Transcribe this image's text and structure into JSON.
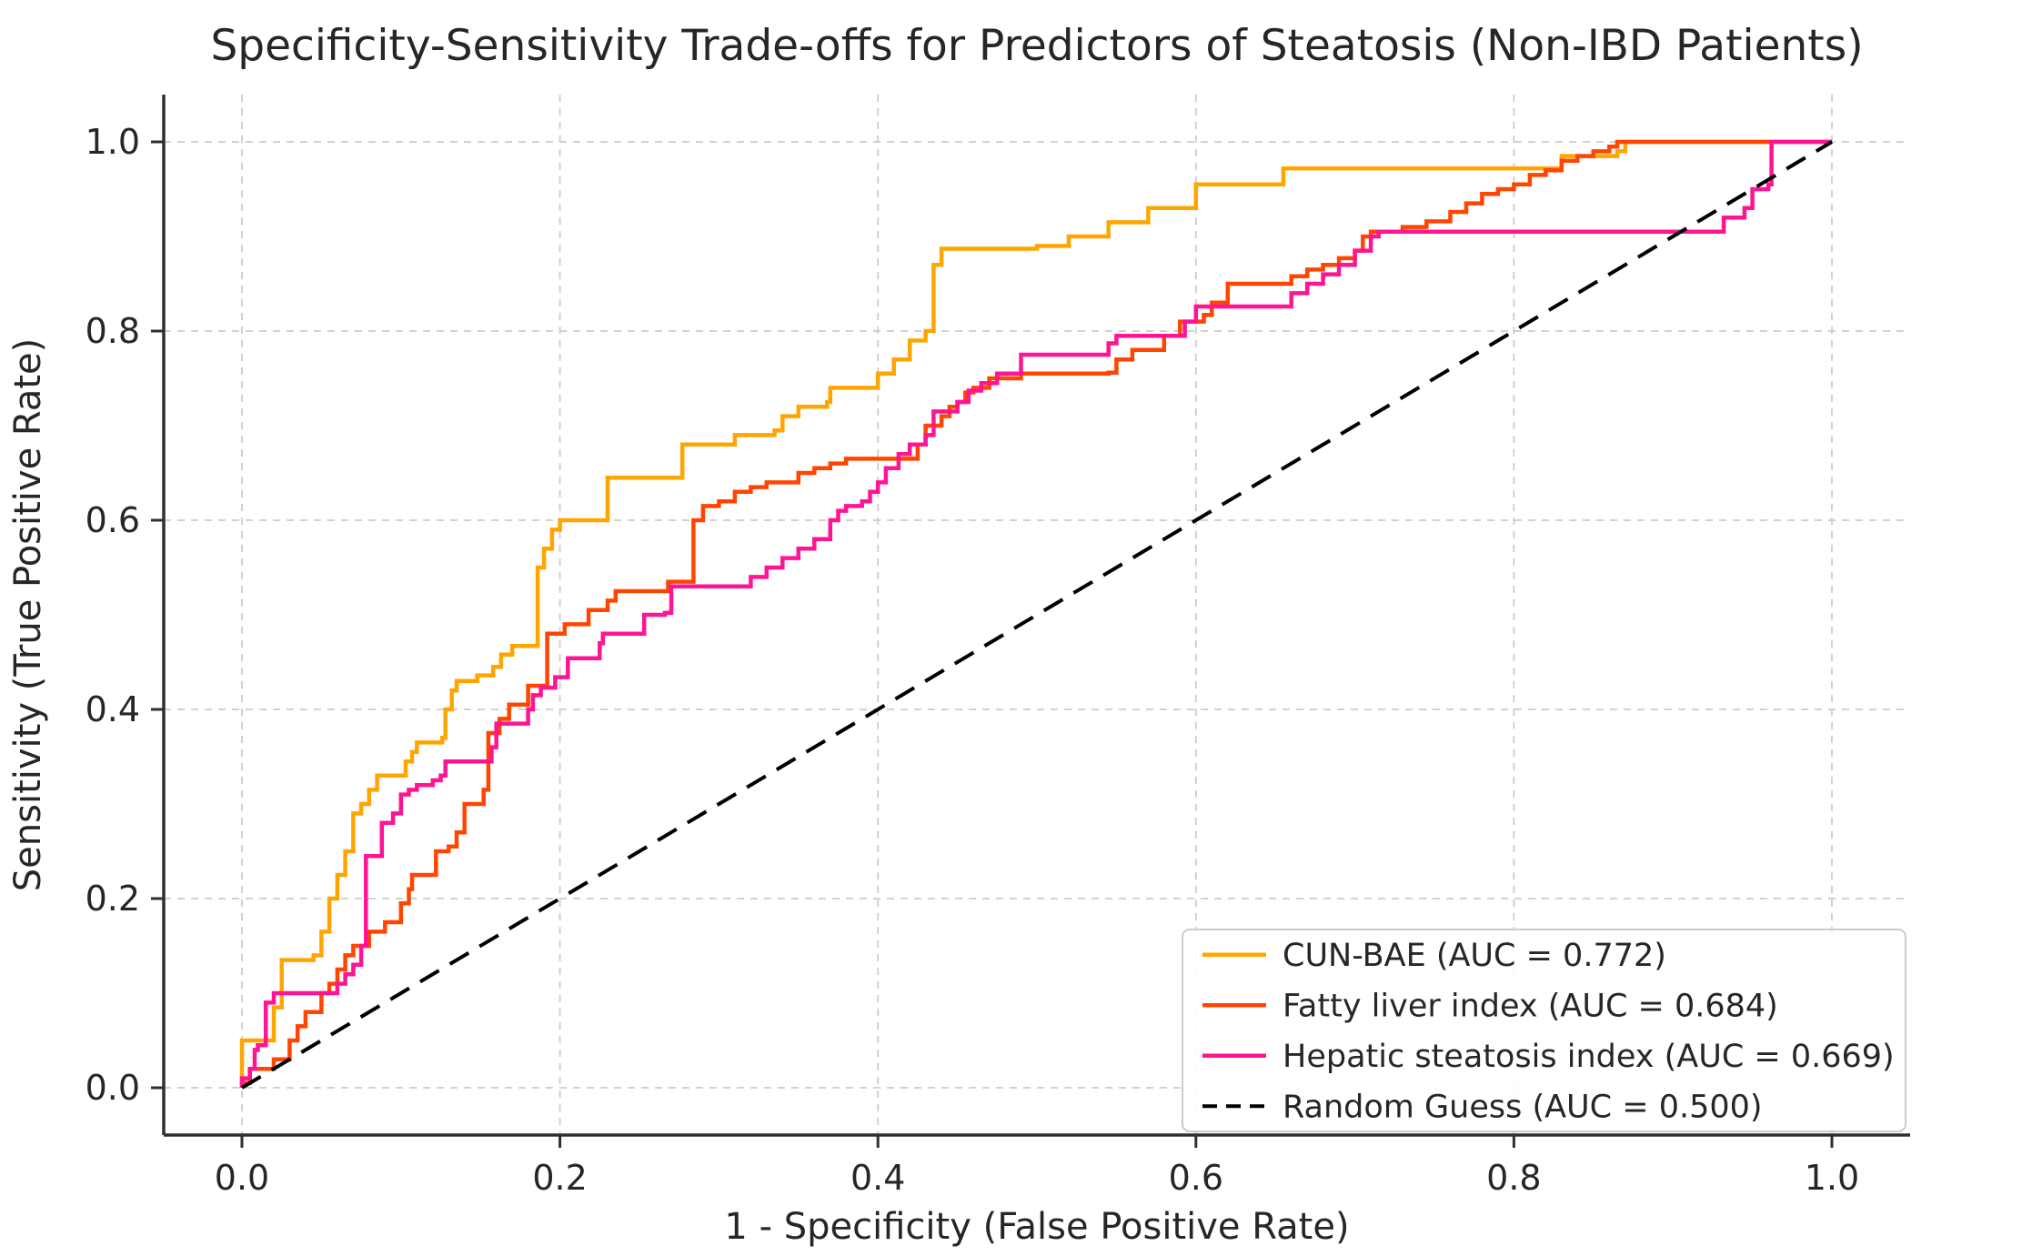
{
  "figure": {
    "background": "#ffffff",
    "text_color": "#262626",
    "spine_color": "#2f2f2f"
  },
  "chart_data": {
    "type": "line",
    "subtype": "roc-step-curves",
    "title": "Specificity-Sensitivity Trade-offs for Predictors of Steatosis (Non-IBD Patients)",
    "xlabel": "1 - Specificity (False Positive Rate)",
    "ylabel": "Sensitivity (True Positive Rate)",
    "xlim": [
      -0.05,
      1.05
    ],
    "ylim": [
      -0.05,
      1.05
    ],
    "x_tick_values": [
      0.0,
      0.2,
      0.4,
      0.6,
      0.8,
      1.0
    ],
    "y_tick_values": [
      0.0,
      0.2,
      0.4,
      0.6,
      0.8,
      1.0
    ],
    "x_tick_labels": [
      "0.0",
      "0.2",
      "0.4",
      "0.6",
      "0.8",
      "1.0"
    ],
    "y_tick_labels": [
      "0.0",
      "0.2",
      "0.4",
      "0.6",
      "0.8",
      "1.0"
    ],
    "grid": true,
    "grid_color": "#cccccc",
    "legend_position": "lower right",
    "series": [
      {
        "name": "CUN-BAE",
        "auc": 0.772,
        "label": "CUN-BAE (AUC = 0.772)",
        "color": "#FFA500",
        "step": true,
        "dashed": false,
        "points": [
          [
            0,
            0
          ],
          [
            0,
            0.05
          ],
          [
            0.02,
            0.05
          ],
          [
            0.02,
            0.085
          ],
          [
            0.025,
            0.09
          ],
          [
            0.025,
            0.135
          ],
          [
            0.045,
            0.14
          ],
          [
            0.05,
            0.165
          ],
          [
            0.055,
            0.2
          ],
          [
            0.06,
            0.225
          ],
          [
            0.065,
            0.25
          ],
          [
            0.07,
            0.29
          ],
          [
            0.075,
            0.3
          ],
          [
            0.08,
            0.315
          ],
          [
            0.085,
            0.33
          ],
          [
            0.1,
            0.33
          ],
          [
            0.103,
            0.345
          ],
          [
            0.107,
            0.355
          ],
          [
            0.11,
            0.365
          ],
          [
            0.126,
            0.37
          ],
          [
            0.128,
            0.4
          ],
          [
            0.132,
            0.42
          ],
          [
            0.135,
            0.43
          ],
          [
            0.148,
            0.436
          ],
          [
            0.158,
            0.445
          ],
          [
            0.163,
            0.458
          ],
          [
            0.17,
            0.467
          ],
          [
            0.186,
            0.467
          ],
          [
            0.186,
            0.55
          ],
          [
            0.19,
            0.57
          ],
          [
            0.195,
            0.59
          ],
          [
            0.2,
            0.6
          ],
          [
            0.225,
            0.6
          ],
          [
            0.23,
            0.645
          ],
          [
            0.27,
            0.645
          ],
          [
            0.277,
            0.68
          ],
          [
            0.305,
            0.68
          ],
          [
            0.31,
            0.69
          ],
          [
            0.335,
            0.695
          ],
          [
            0.34,
            0.71
          ],
          [
            0.35,
            0.72
          ],
          [
            0.368,
            0.725
          ],
          [
            0.37,
            0.74
          ],
          [
            0.395,
            0.74
          ],
          [
            0.4,
            0.755
          ],
          [
            0.41,
            0.77
          ],
          [
            0.42,
            0.79
          ],
          [
            0.43,
            0.8
          ],
          [
            0.435,
            0.8
          ],
          [
            0.435,
            0.87
          ],
          [
            0.44,
            0.887
          ],
          [
            0.5,
            0.89
          ],
          [
            0.52,
            0.9
          ],
          [
            0.545,
            0.915
          ],
          [
            0.57,
            0.93
          ],
          [
            0.6,
            0.93
          ],
          [
            0.6,
            0.955
          ],
          [
            0.655,
            0.955
          ],
          [
            0.655,
            0.972
          ],
          [
            0.825,
            0.972
          ],
          [
            0.83,
            0.985
          ],
          [
            0.865,
            0.99
          ],
          [
            0.87,
            1
          ],
          [
            1,
            1
          ]
        ]
      },
      {
        "name": "Fatty liver index",
        "auc": 0.684,
        "label": "Fatty liver index (AUC = 0.684)",
        "color": "#FF4500",
        "step": true,
        "dashed": false,
        "points": [
          [
            0,
            0
          ],
          [
            0,
            0.005
          ],
          [
            0.005,
            0.02
          ],
          [
            0.02,
            0.03
          ],
          [
            0.03,
            0.05
          ],
          [
            0.035,
            0.065
          ],
          [
            0.04,
            0.08
          ],
          [
            0.05,
            0.1
          ],
          [
            0.055,
            0.11
          ],
          [
            0.06,
            0.125
          ],
          [
            0.065,
            0.14
          ],
          [
            0.07,
            0.15
          ],
          [
            0.08,
            0.165
          ],
          [
            0.09,
            0.175
          ],
          [
            0.1,
            0.195
          ],
          [
            0.105,
            0.21
          ],
          [
            0.107,
            0.225
          ],
          [
            0.12,
            0.225
          ],
          [
            0.122,
            0.25
          ],
          [
            0.13,
            0.255
          ],
          [
            0.135,
            0.27
          ],
          [
            0.14,
            0.3
          ],
          [
            0.15,
            0.3
          ],
          [
            0.152,
            0.315
          ],
          [
            0.155,
            0.375
          ],
          [
            0.162,
            0.39
          ],
          [
            0.168,
            0.405
          ],
          [
            0.178,
            0.405
          ],
          [
            0.18,
            0.425
          ],
          [
            0.192,
            0.425
          ],
          [
            0.192,
            0.48
          ],
          [
            0.203,
            0.49
          ],
          [
            0.215,
            0.49
          ],
          [
            0.218,
            0.505
          ],
          [
            0.23,
            0.515
          ],
          [
            0.235,
            0.525
          ],
          [
            0.263,
            0.525
          ],
          [
            0.268,
            0.535
          ],
          [
            0.284,
            0.54
          ],
          [
            0.284,
            0.6
          ],
          [
            0.29,
            0.615
          ],
          [
            0.3,
            0.62
          ],
          [
            0.31,
            0.63
          ],
          [
            0.32,
            0.635
          ],
          [
            0.33,
            0.64
          ],
          [
            0.35,
            0.65
          ],
          [
            0.36,
            0.655
          ],
          [
            0.37,
            0.66
          ],
          [
            0.38,
            0.665
          ],
          [
            0.42,
            0.665
          ],
          [
            0.425,
            0.68
          ],
          [
            0.43,
            0.7
          ],
          [
            0.44,
            0.71
          ],
          [
            0.445,
            0.72
          ],
          [
            0.45,
            0.725
          ],
          [
            0.455,
            0.735
          ],
          [
            0.46,
            0.74
          ],
          [
            0.47,
            0.75
          ],
          [
            0.49,
            0.755
          ],
          [
            0.545,
            0.756
          ],
          [
            0.55,
            0.77
          ],
          [
            0.56,
            0.78
          ],
          [
            0.58,
            0.795
          ],
          [
            0.59,
            0.81
          ],
          [
            0.605,
            0.817
          ],
          [
            0.61,
            0.83
          ],
          [
            0.62,
            0.85
          ],
          [
            0.655,
            0.85
          ],
          [
            0.66,
            0.858
          ],
          [
            0.67,
            0.865
          ],
          [
            0.68,
            0.87
          ],
          [
            0.69,
            0.877
          ],
          [
            0.7,
            0.885
          ],
          [
            0.705,
            0.9
          ],
          [
            0.71,
            0.905
          ],
          [
            0.73,
            0.91
          ],
          [
            0.745,
            0.916
          ],
          [
            0.76,
            0.926
          ],
          [
            0.77,
            0.935
          ],
          [
            0.78,
            0.945
          ],
          [
            0.79,
            0.95
          ],
          [
            0.8,
            0.955
          ],
          [
            0.81,
            0.965
          ],
          [
            0.82,
            0.97
          ],
          [
            0.83,
            0.98
          ],
          [
            0.84,
            0.985
          ],
          [
            0.85,
            0.99
          ],
          [
            0.86,
            0.995
          ],
          [
            0.865,
            1
          ],
          [
            1,
            1
          ]
        ]
      },
      {
        "name": "Hepatic steatosis index",
        "auc": 0.669,
        "label": "Hepatic steatosis index (AUC = 0.669)",
        "color": "#FF1493",
        "step": true,
        "dashed": false,
        "points": [
          [
            0,
            0
          ],
          [
            0,
            0.01
          ],
          [
            0.005,
            0.02
          ],
          [
            0.008,
            0.04
          ],
          [
            0.01,
            0.045
          ],
          [
            0.015,
            0.09
          ],
          [
            0.02,
            0.1
          ],
          [
            0.055,
            0.1
          ],
          [
            0.06,
            0.11
          ],
          [
            0.065,
            0.12
          ],
          [
            0.07,
            0.13
          ],
          [
            0.075,
            0.15
          ],
          [
            0.078,
            0.155
          ],
          [
            0.078,
            0.245
          ],
          [
            0.088,
            0.28
          ],
          [
            0.095,
            0.29
          ],
          [
            0.1,
            0.31
          ],
          [
            0.105,
            0.315
          ],
          [
            0.11,
            0.32
          ],
          [
            0.12,
            0.325
          ],
          [
            0.125,
            0.33
          ],
          [
            0.128,
            0.345
          ],
          [
            0.155,
            0.345
          ],
          [
            0.157,
            0.36
          ],
          [
            0.16,
            0.385
          ],
          [
            0.178,
            0.385
          ],
          [
            0.18,
            0.4
          ],
          [
            0.183,
            0.415
          ],
          [
            0.188,
            0.423
          ],
          [
            0.197,
            0.434
          ],
          [
            0.205,
            0.454
          ],
          [
            0.223,
            0.454
          ],
          [
            0.225,
            0.47
          ],
          [
            0.227,
            0.48
          ],
          [
            0.251,
            0.48
          ],
          [
            0.253,
            0.5
          ],
          [
            0.266,
            0.502
          ],
          [
            0.27,
            0.53
          ],
          [
            0.315,
            0.53
          ],
          [
            0.32,
            0.54
          ],
          [
            0.33,
            0.55
          ],
          [
            0.34,
            0.56
          ],
          [
            0.35,
            0.57
          ],
          [
            0.36,
            0.58
          ],
          [
            0.37,
            0.6
          ],
          [
            0.375,
            0.61
          ],
          [
            0.38,
            0.615
          ],
          [
            0.39,
            0.62
          ],
          [
            0.395,
            0.63
          ],
          [
            0.4,
            0.64
          ],
          [
            0.405,
            0.655
          ],
          [
            0.413,
            0.67
          ],
          [
            0.42,
            0.68
          ],
          [
            0.43,
            0.69
          ],
          [
            0.435,
            0.715
          ],
          [
            0.45,
            0.725
          ],
          [
            0.457,
            0.737
          ],
          [
            0.465,
            0.745
          ],
          [
            0.475,
            0.755
          ],
          [
            0.49,
            0.775
          ],
          [
            0.54,
            0.775
          ],
          [
            0.545,
            0.787
          ],
          [
            0.55,
            0.795
          ],
          [
            0.59,
            0.795
          ],
          [
            0.593,
            0.81
          ],
          [
            0.6,
            0.826
          ],
          [
            0.655,
            0.826
          ],
          [
            0.66,
            0.84
          ],
          [
            0.67,
            0.85
          ],
          [
            0.68,
            0.86
          ],
          [
            0.69,
            0.87
          ],
          [
            0.7,
            0.885
          ],
          [
            0.71,
            0.9
          ],
          [
            0.715,
            0.905
          ],
          [
            0.93,
            0.905
          ],
          [
            0.932,
            0.92
          ],
          [
            0.945,
            0.93
          ],
          [
            0.95,
            0.95
          ],
          [
            0.96,
            0.955
          ],
          [
            0.962,
            1
          ],
          [
            1,
            1
          ]
        ]
      },
      {
        "name": "Random Guess",
        "auc": 0.5,
        "label": "Random Guess (AUC = 0.500)",
        "color": "#000000",
        "step": false,
        "dashed": true,
        "points": [
          [
            0,
            0
          ],
          [
            1,
            1
          ]
        ]
      }
    ]
  }
}
